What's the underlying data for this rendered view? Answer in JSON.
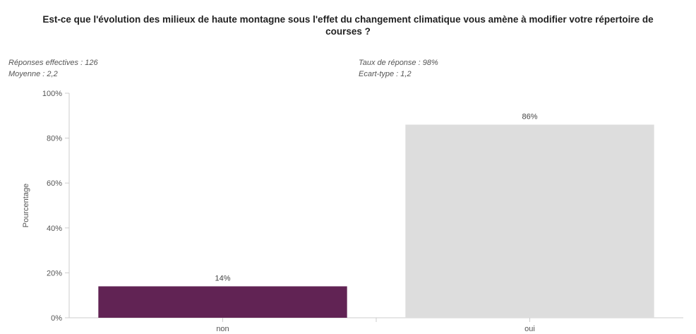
{
  "header": {
    "title_line1": "Est-ce que l'évolution des milieux de haute montagne sous l'effet du changement climatique vous amène à modifier votre répertoire de",
    "title_line2": "courses ?"
  },
  "stats": {
    "reponses": "Réponses effectives : 126",
    "moyenne": "Moyenne : 2,2",
    "taux": "Taux de réponse : 98%",
    "ecart": "Ecart-type : 1,2"
  },
  "chart_data": {
    "type": "bar",
    "categories": [
      "non",
      "oui"
    ],
    "values": [
      14,
      86
    ],
    "value_labels": [
      "14%",
      "86%"
    ],
    "colors": [
      "#612354",
      "#dddddd"
    ],
    "ylabel": "Pourcentage",
    "xlabel": "",
    "ylim": [
      0,
      100
    ],
    "yticks": [
      0,
      20,
      40,
      60,
      80,
      100
    ],
    "ytick_labels": [
      "0%",
      "20%",
      "40%",
      "60%",
      "80%",
      "100%"
    ],
    "grid": false
  }
}
